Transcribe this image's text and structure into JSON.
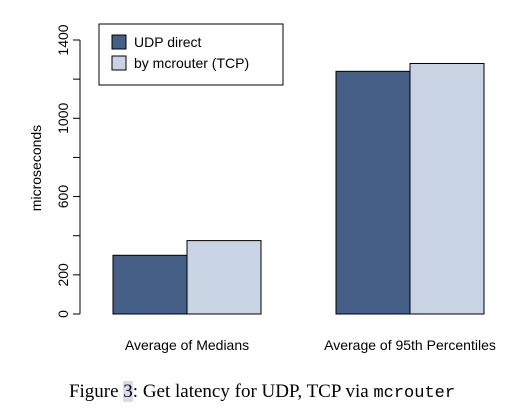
{
  "chart_data": {
    "type": "bar",
    "categories": [
      "Average of Medians",
      "Average of 95th Percentiles"
    ],
    "series": [
      {
        "name": "UDP direct",
        "values": [
          300,
          1240
        ],
        "color": "#465f86"
      },
      {
        "name": "by mcrouter (TCP)",
        "values": [
          375,
          1280
        ],
        "color": "#c8d4e4"
      }
    ],
    "ylabel": "microseconds",
    "xlabel": "",
    "ylim": [
      0,
      1400
    ],
    "yticks": [
      0,
      200,
      600,
      1000,
      1400
    ],
    "yminor_ticks": [
      400,
      800,
      1200
    ],
    "grid": false,
    "legend_position": "top-left"
  },
  "caption": {
    "prefix": "Figure ",
    "number": "3",
    "text": ": Get latency for UDP, TCP via ",
    "code": "mcrouter"
  }
}
